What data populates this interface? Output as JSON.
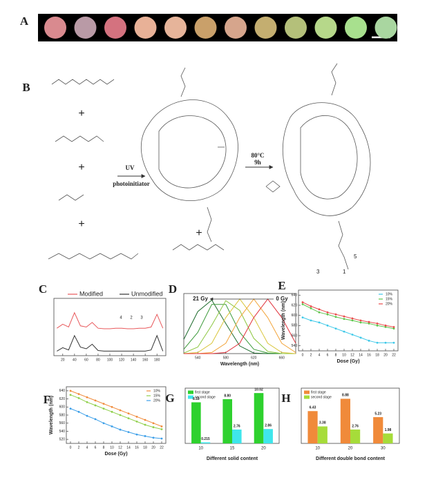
{
  "panel_labels": [
    "A",
    "B",
    "C",
    "D",
    "E",
    "F",
    "G",
    "H"
  ],
  "swatches": [
    "#d98a8f",
    "#b99aa6",
    "#d4727f",
    "#e8b197",
    "#e6b49a",
    "#c9a06a",
    "#d6a58c",
    "#c4ae70",
    "#b4c07a",
    "#b6d88a",
    "#a8e08e",
    "#a9d6a0"
  ],
  "scheme": {
    "plus": [
      "+",
      "+",
      "+",
      "+"
    ],
    "uv": "UV",
    "photoinitiator": "photoinitiator",
    "temperature": "80°C",
    "time": "9h",
    "atom_labels": [
      "5",
      "3",
      "1"
    ]
  },
  "chart_data": [
    {
      "type": "line",
      "x": [
        10,
        20,
        30,
        40,
        50,
        60,
        70,
        80,
        90,
        100,
        110,
        120,
        130,
        140,
        150,
        160,
        170,
        180,
        190
      ],
      "xlim": [
        5,
        195
      ],
      "xticks": [
        20,
        40,
        60,
        80,
        100,
        120,
        140,
        160,
        180
      ],
      "ylim": [
        0,
        100
      ],
      "legend": "upper center",
      "markers": false,
      "annotations": [
        "4",
        "2",
        "3"
      ],
      "series": [
        {
          "name": "Modified",
          "color": "#e8575a",
          "values": [
            48,
            55,
            50,
            75,
            52,
            50,
            58,
            48,
            47,
            47,
            48,
            48,
            47,
            47,
            48,
            48,
            50,
            72,
            48
          ]
        },
        {
          "name": "Unmodified",
          "color": "#333333",
          "values": [
            8,
            14,
            10,
            35,
            15,
            12,
            20,
            9,
            8,
            8,
            8,
            8,
            8,
            8,
            8,
            8,
            10,
            35,
            8
          ]
        }
      ]
    },
    {
      "type": "line",
      "x": [
        520,
        540,
        560,
        580,
        600,
        620,
        640,
        660,
        680
      ],
      "xlim": [
        520,
        680
      ],
      "xticks": [
        540,
        580,
        620,
        660
      ],
      "ylim": [
        0,
        1.1
      ],
      "xlabel": "Wavelength (nm)",
      "markers": false,
      "annotations": [
        "21 Gy",
        "0 Gy"
      ],
      "series": [
        {
          "color": "#1d6b2c",
          "values": [
            0.26,
            0.77,
            0.98,
            0.55,
            0.14,
            0.01,
            0,
            0,
            0
          ]
        },
        {
          "color": "#3c9a3a",
          "values": [
            0.08,
            0.39,
            0.9,
            0.9,
            0.39,
            0.08,
            0.01,
            0,
            0
          ]
        },
        {
          "color": "#8cc63f",
          "values": [
            0.01,
            0.12,
            0.52,
            0.97,
            0.79,
            0.28,
            0.04,
            0,
            0
          ]
        },
        {
          "color": "#d9c53a",
          "values": [
            0,
            0.02,
            0.19,
            0.66,
            1,
            0.66,
            0.19,
            0.02,
            0
          ]
        },
        {
          "color": "#f2a43a",
          "values": [
            0,
            0,
            0.02,
            0.19,
            0.66,
            1,
            0.66,
            0.19,
            0.02
          ]
        },
        {
          "color": "#e0303a",
          "values": [
            0,
            0,
            0,
            0.02,
            0.19,
            0.66,
            1,
            0.66,
            0.19
          ]
        }
      ]
    },
    {
      "type": "line",
      "x": [
        0,
        2,
        4,
        6,
        8,
        10,
        12,
        14,
        16,
        18,
        20,
        22
      ],
      "xlim": [
        -1,
        23
      ],
      "xticks": [
        0,
        2,
        4,
        6,
        8,
        10,
        12,
        14,
        16,
        18,
        20,
        22
      ],
      "ylim": [
        530,
        650
      ],
      "yticks": [
        540,
        560,
        580,
        600,
        620,
        640
      ],
      "xlabel": "Dose (Gy)",
      "ylabel": "Wavelength (nm)",
      "legend": "upper right",
      "markers": true,
      "series": [
        {
          "name": "10%",
          "color": "#3cc8e8",
          "values": [
            596,
            590,
            586,
            580,
            574,
            568,
            562,
            556,
            550,
            546,
            546,
            546
          ]
        },
        {
          "name": "15%",
          "color": "#5cc44a",
          "values": [
            622,
            614,
            606,
            602,
            597,
            593,
            590,
            586,
            584,
            580,
            577,
            574
          ]
        },
        {
          "name": "20%",
          "color": "#e84a4a",
          "values": [
            626,
            618,
            612,
            606,
            602,
            598,
            594,
            590,
            587,
            584,
            580,
            577
          ]
        }
      ]
    },
    {
      "type": "line",
      "x": [
        0,
        2,
        4,
        6,
        8,
        10,
        12,
        14,
        16,
        18,
        20,
        22
      ],
      "xlim": [
        -1,
        23
      ],
      "xticks": [
        0,
        2,
        4,
        6,
        8,
        10,
        12,
        14,
        16,
        18,
        20,
        22
      ],
      "ylim": [
        510,
        650
      ],
      "yticks": [
        520,
        540,
        560,
        580,
        600,
        620,
        640
      ],
      "xlabel": "Dose (Gy)",
      "ylabel": "Wavelength (nm)",
      "legend": "upper right",
      "markers": true,
      "series": [
        {
          "name": "10%",
          "color": "#f08a3a",
          "values": [
            640,
            632,
            624,
            616,
            608,
            600,
            592,
            584,
            576,
            568,
            560,
            552
          ]
        },
        {
          "name": "15%",
          "color": "#8fcf4a",
          "values": [
            630,
            622,
            612,
            604,
            596,
            588,
            580,
            572,
            564,
            556,
            550,
            545
          ]
        },
        {
          "name": "20%",
          "color": "#3a9ee8",
          "values": [
            596,
            588,
            578,
            570,
            560,
            552,
            544,
            538,
            532,
            528,
            524,
            522
          ]
        }
      ]
    },
    {
      "type": "bar",
      "categories": [
        "10",
        "15",
        "20"
      ],
      "ylim": [
        0,
        11
      ],
      "xlabel": "Different solid content",
      "legend": "upper left",
      "series": [
        {
          "name": "first stage",
          "color": "#2ed12e",
          "values": [
            8.18,
            8.8,
            10.02
          ],
          "value_labels": [
            "8.18",
            "8.80",
            "10.02"
          ]
        },
        {
          "name": "second stage",
          "color": "#3fe6ec",
          "values": [
            0.215,
            2.76,
            2.86
          ],
          "value_labels": [
            "0.215",
            "2.76",
            "2.86"
          ]
        }
      ]
    },
    {
      "type": "bar",
      "categories": [
        "10",
        "20",
        "30"
      ],
      "ylim": [
        0,
        11
      ],
      "xlabel": "Different double bond content",
      "legend": "upper left",
      "series": [
        {
          "name": "first stage",
          "color": "#f08a3a",
          "values": [
            6.43,
            8.88,
            5.23
          ],
          "value_labels": [
            "6.43",
            "8.88",
            "5.23"
          ]
        },
        {
          "name": "second stage",
          "color": "#a6dc3a",
          "values": [
            3.38,
            2.76,
            1.98
          ],
          "value_labels": [
            "3.38",
            "2.76",
            "1.98"
          ]
        }
      ]
    }
  ]
}
